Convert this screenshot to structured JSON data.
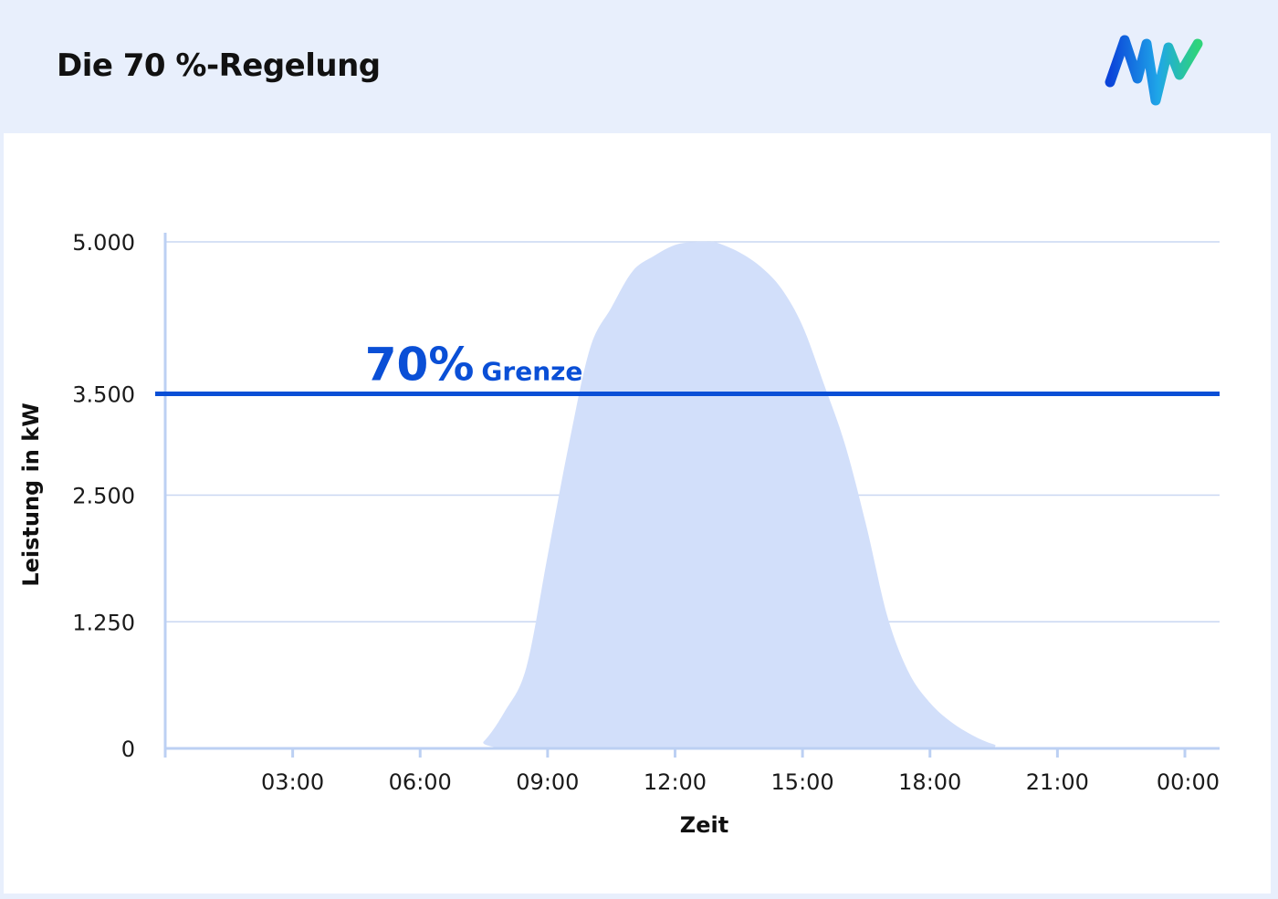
{
  "header": {
    "title": "Die 70 %-Regelung",
    "logo_icon": "mw-brand-logo-icon"
  },
  "colors": {
    "accent": "#0a4fd6",
    "area_fill": "#d2dffa",
    "grid": "#c9d7f2",
    "axis": "#bcd0f3",
    "background": "#e8effc"
  },
  "chart_data": {
    "type": "area",
    "title": "",
    "xlabel": "Zeit",
    "ylabel": "Leistung in kW",
    "xlim": [
      0,
      24
    ],
    "ylim": [
      0,
      5000
    ],
    "y_ticks": [
      {
        "value": 0,
        "label": "0"
      },
      {
        "value": 1250,
        "label": "1.250"
      },
      {
        "value": 2500,
        "label": "2.500"
      },
      {
        "value": 3500,
        "label": "3.500"
      },
      {
        "value": 5000,
        "label": "5.000"
      }
    ],
    "x_ticks": [
      {
        "value": 3,
        "label": "03:00"
      },
      {
        "value": 6,
        "label": "06:00"
      },
      {
        "value": 9,
        "label": "09:00"
      },
      {
        "value": 12,
        "label": "12:00"
      },
      {
        "value": 15,
        "label": "15:00"
      },
      {
        "value": 18,
        "label": "18:00"
      },
      {
        "value": 21,
        "label": "21:00"
      },
      {
        "value": 24,
        "label": "00:00"
      }
    ],
    "grid": true,
    "series": [
      {
        "x": [
          0,
          7.1,
          7.5,
          8.0,
          8.5,
          9.0,
          9.5,
          10.0,
          10.5,
          11.0,
          11.5,
          12.0,
          12.5,
          12.8,
          13.0,
          13.5,
          14.0,
          14.5,
          15.0,
          15.5,
          16.0,
          16.5,
          17.0,
          17.5,
          18.0,
          18.5,
          19.0,
          19.5,
          20.0,
          24
        ],
        "y": [
          0,
          0,
          70,
          370,
          800,
          1900,
          3000,
          3950,
          4350,
          4710,
          4860,
          4970,
          5000,
          5000,
          4990,
          4900,
          4760,
          4540,
          4170,
          3600,
          3000,
          2200,
          1300,
          750,
          450,
          260,
          130,
          40,
          0,
          0
        ]
      }
    ],
    "annotations": [
      {
        "type": "hline",
        "y": 3500,
        "big_label": "70%",
        "small_label": "Grenze",
        "x": 4.7
      }
    ]
  }
}
